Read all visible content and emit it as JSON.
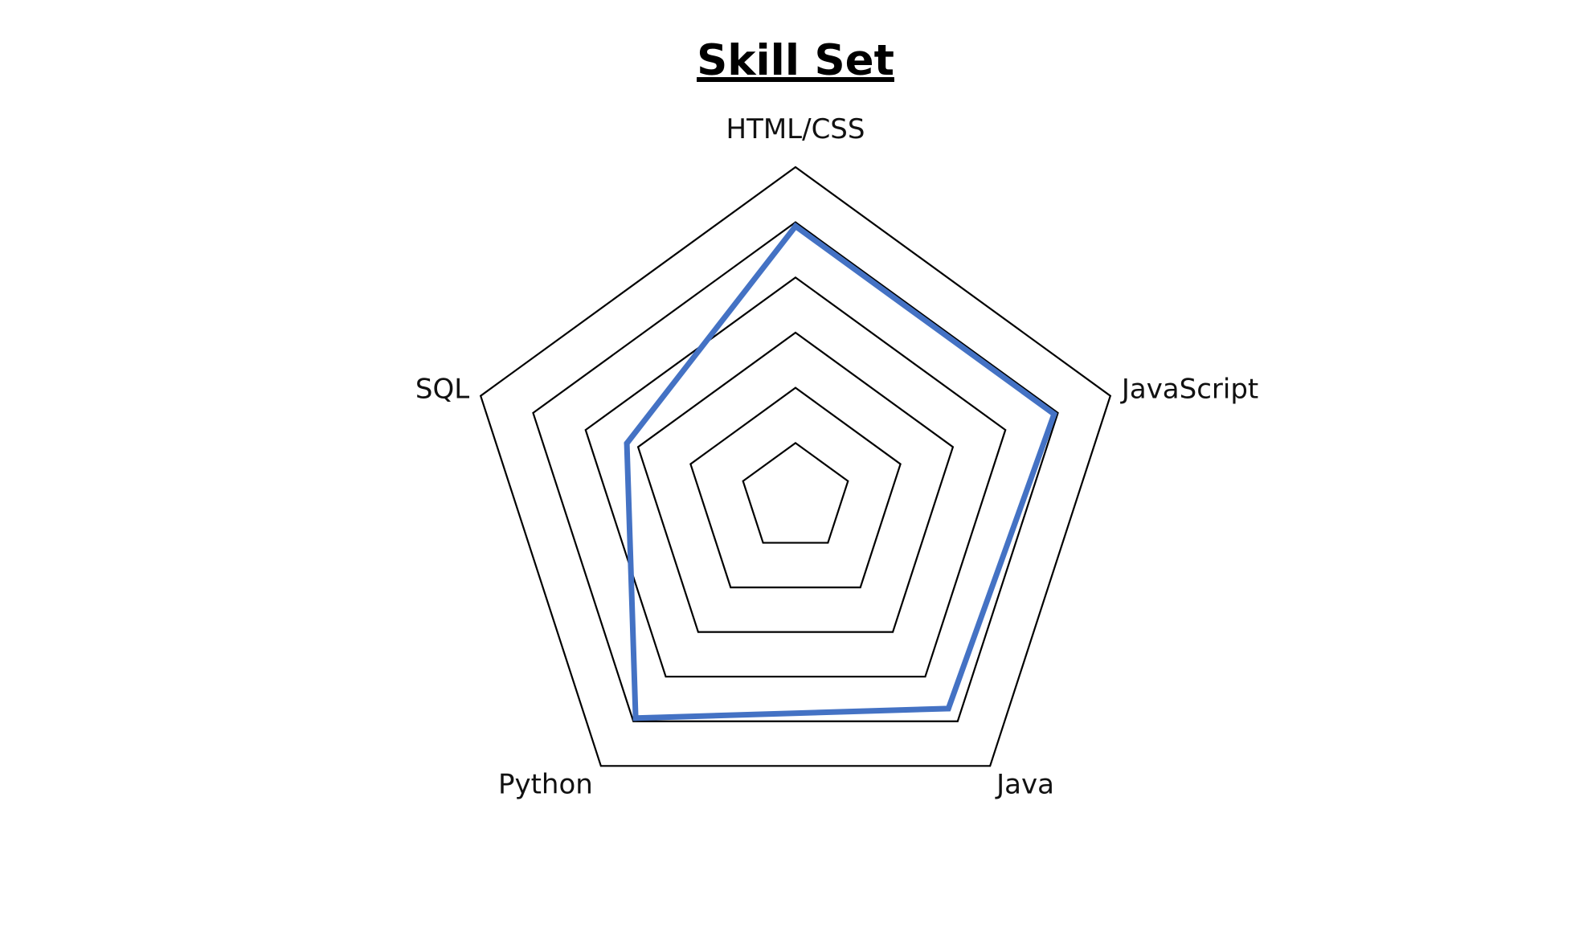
{
  "chart_data": {
    "type": "radar",
    "title": "Skill Set",
    "categories": [
      "HTML/CSS",
      "JavaScript",
      "Java",
      "Python",
      "SQL"
    ],
    "series": [
      {
        "values": [
          4.6,
          4.6,
          4.4,
          4.6,
          3.0
        ]
      }
    ],
    "rmin": 0,
    "rmax": 5.6,
    "rings": [
      1,
      2,
      3,
      4,
      5,
      6
    ],
    "grid": true,
    "legend": "none",
    "colors": {
      "series": "#4472C4",
      "grid": "#000000",
      "text": "#000000"
    }
  }
}
